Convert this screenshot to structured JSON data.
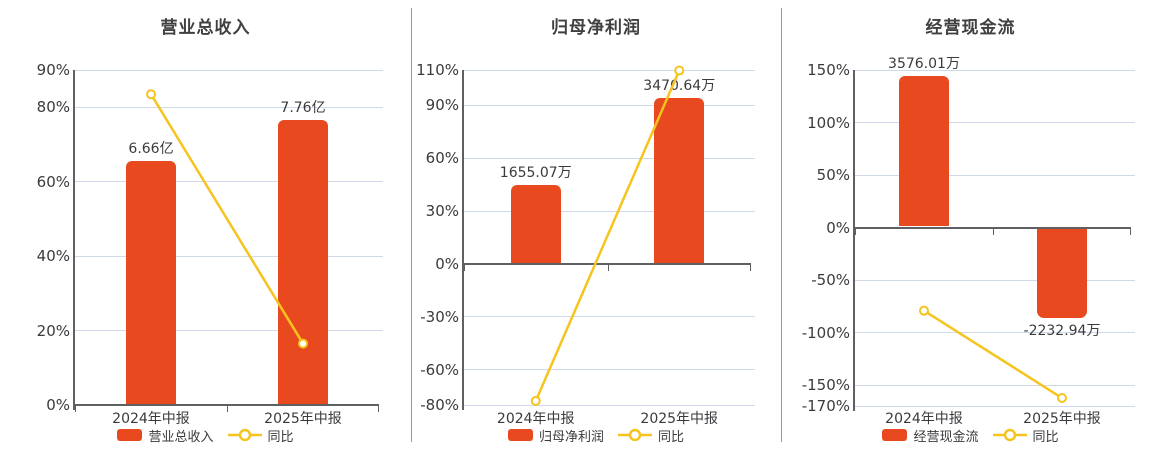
{
  "colors": {
    "bar": "#E8491F",
    "line": "#F5C41E",
    "grid": "#CFD9EA",
    "axis": "#5F6064",
    "divider": "#97979B",
    "title_text": "#404040",
    "text": "#3B3B3F",
    "marker_fill": "#FFFFFF",
    "background": "#FFFFFF"
  },
  "chart_data": [
    {
      "type": "bar+line",
      "title": "营业总收入",
      "categories": [
        "2024年中报",
        "2025年中报"
      ],
      "legend": {
        "bar_label": "营业总收入",
        "line_label": "同比"
      },
      "bars": {
        "value_labels": [
          "6.66亿",
          "7.76亿"
        ],
        "display_pct": [
          65.6,
          76.5
        ]
      },
      "line": {
        "name": "同比",
        "values_pct": [
          83.5,
          16.5
        ]
      },
      "y_axis": {
        "min": 0,
        "max": 90,
        "unit": "%",
        "ticks": [
          90,
          80,
          60,
          40,
          20,
          0
        ],
        "tick_labels": [
          "90%",
          "80%",
          "60%",
          "40%",
          "20%",
          "0%"
        ]
      },
      "grid": "on",
      "legend_position": "bottom"
    },
    {
      "type": "bar+line",
      "title": "归母净利润",
      "categories": [
        "2024年中报",
        "2025年中报"
      ],
      "legend": {
        "bar_label": "归母净利润",
        "line_label": "同比"
      },
      "bars": {
        "value_labels": [
          "1655.07万",
          "3470.64万"
        ],
        "display_pct": [
          45.0,
          94.3
        ]
      },
      "line": {
        "name": "同比",
        "values_pct": [
          -77.7,
          109.7
        ]
      },
      "y_axis": {
        "min": -80,
        "max": 110,
        "unit": "%",
        "ticks": [
          110,
          90,
          60,
          30,
          0,
          -30,
          -60,
          -80
        ],
        "tick_labels": [
          "110%",
          "90%",
          "60%",
          "30%",
          "0%",
          "-30%",
          "-60%",
          "-80%"
        ]
      },
      "grid": "on",
      "legend_position": "bottom"
    },
    {
      "type": "bar+line",
      "title": "经营现金流",
      "categories": [
        "2024年中报",
        "2025年中报"
      ],
      "legend": {
        "bar_label": "经营现金流",
        "line_label": "同比"
      },
      "bars": {
        "value_labels": [
          "3576.01万",
          "-2232.94万"
        ],
        "display_pct": [
          144.6,
          -86.2
        ]
      },
      "line": {
        "name": "同比",
        "values_pct": [
          -79.2,
          -162.4
        ]
      },
      "y_axis": {
        "min": -170,
        "max": 150,
        "unit": "%",
        "ticks": [
          150,
          100,
          50,
          0,
          -50,
          -100,
          -150,
          -170
        ],
        "tick_labels": [
          "150%",
          "100%",
          "50%",
          "0%",
          "-50%",
          "-100%",
          "-150%",
          "-170%"
        ]
      },
      "grid": "on",
      "legend_position": "bottom"
    }
  ]
}
